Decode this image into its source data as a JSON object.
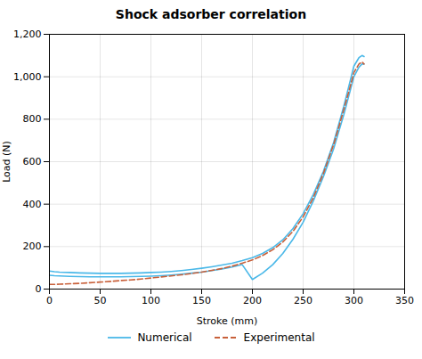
{
  "chart_data": {
    "type": "line",
    "title": "Shock adsorber correlation",
    "xlabel": "Stroke (mm)",
    "ylabel": "Load (N)",
    "xlim": [
      0,
      350
    ],
    "ylim": [
      0,
      1200
    ],
    "xticks": [
      0,
      50,
      100,
      150,
      200,
      250,
      300,
      350
    ],
    "yticks": [
      0,
      200,
      400,
      600,
      800,
      1000,
      1200
    ],
    "grid": true,
    "legend": "bottom",
    "x": [
      0,
      5,
      10,
      20,
      30,
      40,
      50,
      60,
      70,
      80,
      90,
      100,
      110,
      120,
      130,
      140,
      150,
      160,
      170,
      180,
      190,
      200,
      210,
      220,
      230,
      240,
      250,
      260,
      270,
      280,
      285,
      290,
      295,
      300,
      305,
      308,
      310
    ],
    "series": [
      {
        "name": "Numerical",
        "color": "#4ab8e8",
        "line_style": "solid",
        "values": [
          85,
          82,
          80,
          78,
          76,
          75,
          74,
          74,
          74,
          75,
          76,
          78,
          80,
          83,
          87,
          92,
          98,
          105,
          113,
          122,
          134,
          148,
          168,
          195,
          232,
          285,
          355,
          445,
          555,
          690,
          775,
          860,
          955,
          1050,
          1090,
          1100,
          1095
        ]
      },
      {
        "name": "Numerical",
        "color": "#4ab8e8",
        "line_style": "solid",
        "values": [
          65,
          63,
          62,
          60,
          59,
          58,
          58,
          58,
          58,
          59,
          60,
          61,
          63,
          66,
          70,
          75,
          80,
          87,
          95,
          104,
          115,
          45,
          75,
          115,
          168,
          235,
          315,
          415,
          530,
          660,
          740,
          820,
          910,
          1000,
          1045,
          1060,
          1060
        ]
      },
      {
        "name": "Experimental",
        "color": "#c8603a",
        "line_style": "dashed",
        "values": [
          22,
          22,
          23,
          25,
          27,
          30,
          33,
          36,
          40,
          43,
          47,
          52,
          57,
          62,
          67,
          73,
          80,
          88,
          97,
          108,
          122,
          137,
          158,
          185,
          222,
          272,
          340,
          430,
          545,
          680,
          760,
          845,
          930,
          1020,
          1060,
          1070,
          1060
        ]
      }
    ]
  }
}
